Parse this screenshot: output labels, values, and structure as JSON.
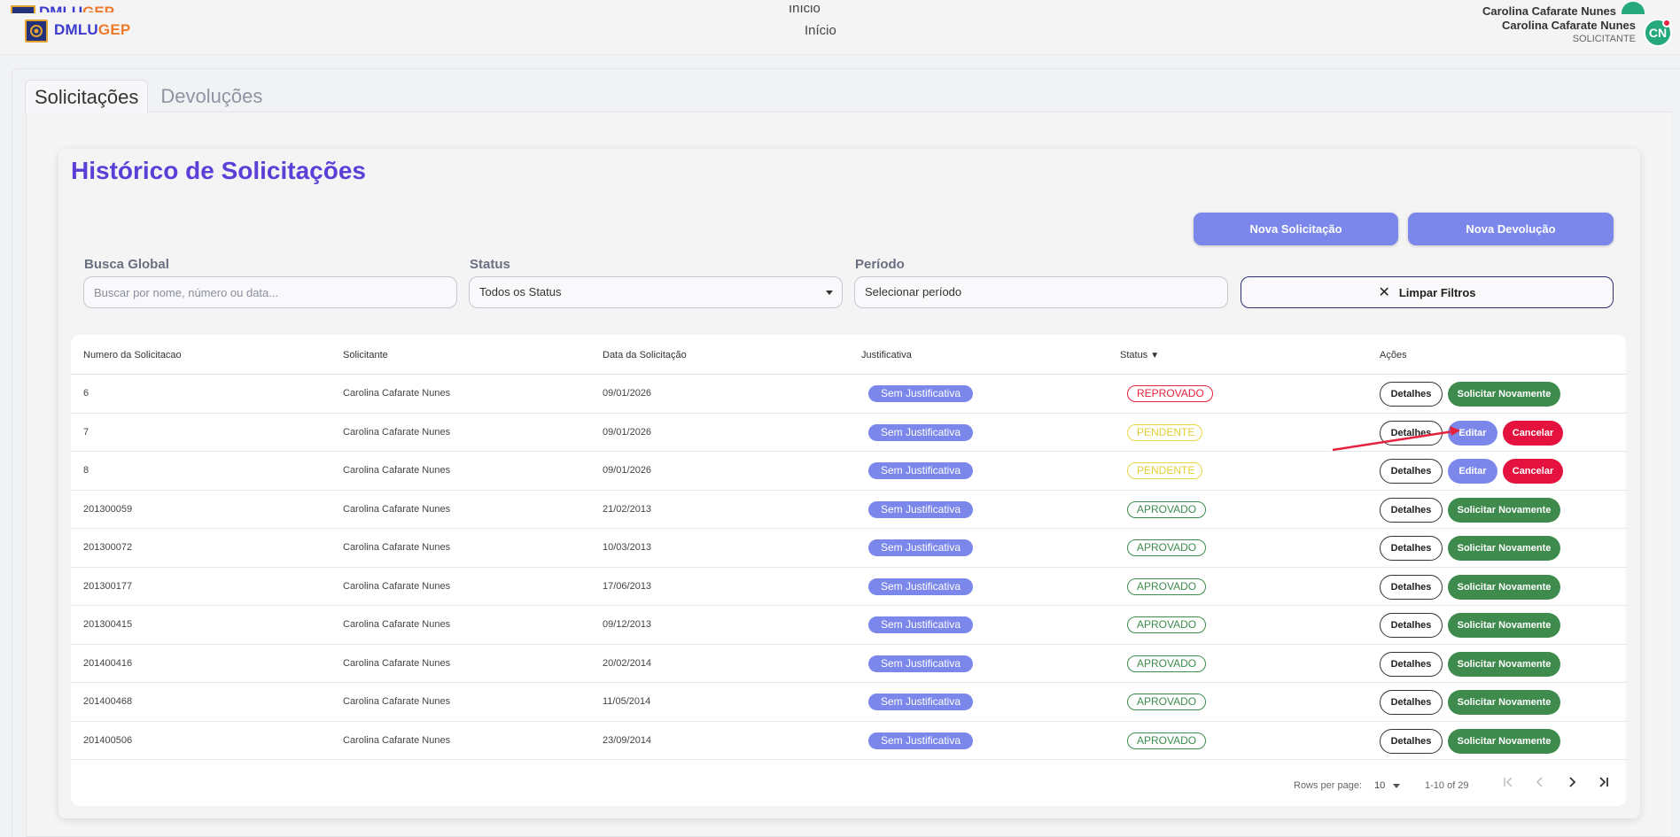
{
  "header": {
    "brand_a": "DMLU",
    "brand_b": "GEP",
    "nav_home": "Início",
    "user_name": "Carolina Cafarate Nunes",
    "user_role": "SOLICITANTE",
    "avatar_initials": "CN"
  },
  "tabs": [
    {
      "label": "Solicitações",
      "active": true
    },
    {
      "label": "Devoluções",
      "active": false
    }
  ],
  "page": {
    "title": "Histórico de Solicitações",
    "new_request_label": "Nova Solicitação",
    "new_return_label": "Nova Devolução"
  },
  "filters": {
    "search_label": "Busca Global",
    "search_placeholder": "Buscar por nome, número ou data...",
    "status_label": "Status",
    "status_value": "Todos os Status",
    "period_label": "Período",
    "period_value": "Selecionar período",
    "clear_label": "Limpar Filtros"
  },
  "table": {
    "columns": [
      "Numero da Solicitacao",
      "Solicitante",
      "Data da Solicitação",
      "Justificativa",
      "Status",
      "Ações"
    ],
    "status_sort_icon": "▼",
    "rows": [
      {
        "numero": "6",
        "solicitante": "Carolina Cafarate Nunes",
        "data": "09/01/2026",
        "justificativa": "Sem Justificativa",
        "status": "REPROVADO"
      },
      {
        "numero": "7",
        "solicitante": "Carolina Cafarate Nunes",
        "data": "09/01/2026",
        "justificativa": "Sem Justificativa",
        "status": "PENDENTE"
      },
      {
        "numero": "8",
        "solicitante": "Carolina Cafarate Nunes",
        "data": "09/01/2026",
        "justificativa": "Sem Justificativa",
        "status": "PENDENTE"
      },
      {
        "numero": "201300059",
        "solicitante": "Carolina Cafarate Nunes",
        "data": "21/02/2013",
        "justificativa": "Sem Justificativa",
        "status": "APROVADO"
      },
      {
        "numero": "201300072",
        "solicitante": "Carolina Cafarate Nunes",
        "data": "10/03/2013",
        "justificativa": "Sem Justificativa",
        "status": "APROVADO"
      },
      {
        "numero": "201300177",
        "solicitante": "Carolina Cafarate Nunes",
        "data": "17/06/2013",
        "justificativa": "Sem Justificativa",
        "status": "APROVADO"
      },
      {
        "numero": "201300415",
        "solicitante": "Carolina Cafarate Nunes",
        "data": "09/12/2013",
        "justificativa": "Sem Justificativa",
        "status": "APROVADO"
      },
      {
        "numero": "201400416",
        "solicitante": "Carolina Cafarate Nunes",
        "data": "20/02/2014",
        "justificativa": "Sem Justificativa",
        "status": "APROVADO"
      },
      {
        "numero": "201400468",
        "solicitante": "Carolina Cafarate Nunes",
        "data": "11/05/2014",
        "justificativa": "Sem Justificativa",
        "status": "APROVADO"
      },
      {
        "numero": "201400506",
        "solicitante": "Carolina Cafarate Nunes",
        "data": "23/09/2014",
        "justificativa": "Sem Justificativa",
        "status": "APROVADO"
      }
    ],
    "actions": {
      "details": "Detalhes",
      "request_again": "Solicitar Novamente",
      "edit": "Editar",
      "cancel": "Cancelar"
    }
  },
  "pagination": {
    "rows_per_page_label": "Rows per page:",
    "rows_per_page_value": "10",
    "range": "1-10 of 29",
    "first_icon": "first-page-icon",
    "prev_icon": "chevron-left-icon",
    "next_icon": "chevron-right-icon",
    "last_icon": "last-page-icon"
  },
  "colors": {
    "accent": "#7b87ea",
    "title": "#5b3fd6",
    "approved": "#3e8b4d",
    "rejected": "#e5213e",
    "pending": "#e3cf36"
  }
}
